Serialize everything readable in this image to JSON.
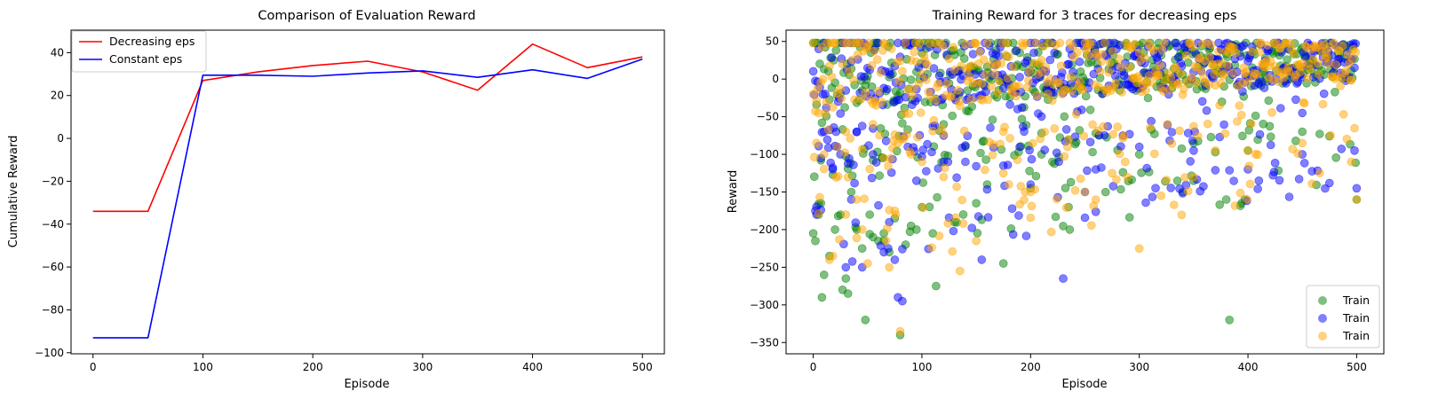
{
  "chart_data": [
    {
      "type": "line",
      "title": "Comparison of Evaluation Reward",
      "xlabel": "Episode",
      "ylabel": "Cumulative Reward",
      "xlim": [
        -20,
        520
      ],
      "ylim": [
        -100.5,
        50.5
      ],
      "xticks": [
        0,
        100,
        200,
        300,
        400,
        500
      ],
      "yticks": [
        -100,
        -80,
        -60,
        -40,
        -20,
        0,
        20,
        40
      ],
      "grid": false,
      "legend_position": "top-left",
      "x": [
        0,
        50,
        100,
        150,
        200,
        250,
        300,
        350,
        400,
        450,
        500
      ],
      "series": [
        {
          "name": "Decreasing eps",
          "color": "#ff0000",
          "values": [
            -34,
            -34,
            27,
            31,
            34,
            36,
            31,
            22.5,
            44,
            33,
            38
          ]
        },
        {
          "name": "Constant eps",
          "color": "#0000ff",
          "values": [
            -93,
            -93,
            29.5,
            29.5,
            29,
            30.5,
            31.5,
            28.5,
            32,
            28,
            37
          ]
        }
      ]
    },
    {
      "type": "scatter",
      "title": "Training Reward for 3 traces for decreasing eps",
      "xlabel": "Episode",
      "ylabel": "Reward",
      "xlim": [
        -25,
        525
      ],
      "ylim": [
        -365,
        65
      ],
      "xticks": [
        0,
        100,
        200,
        300,
        400,
        500
      ],
      "yticks": [
        -350,
        -300,
        -250,
        -200,
        -150,
        -100,
        -50,
        0,
        50
      ],
      "grid": false,
      "legend_position": "bottom-right",
      "series": [
        {
          "name": "Train",
          "color": "#008000",
          "opacity": 0.5,
          "seed": 7
        },
        {
          "name": "Train",
          "color": "#0000ff",
          "opacity": 0.5,
          "seed": 13
        },
        {
          "name": "Train",
          "color": "#ffa500",
          "opacity": 0.5,
          "seed": 29
        }
      ],
      "x_range": [
        0,
        500
      ],
      "notes_points": {
        "green": [
          [
            0,
            -205
          ],
          [
            2,
            -215
          ],
          [
            5,
            -180
          ],
          [
            7,
            -165
          ],
          [
            8,
            -290
          ],
          [
            10,
            -260
          ],
          [
            15,
            -235
          ],
          [
            20,
            -200
          ],
          [
            25,
            -180
          ],
          [
            27,
            -280
          ],
          [
            30,
            -265
          ],
          [
            32,
            -285
          ],
          [
            35,
            -150
          ],
          [
            40,
            -200
          ],
          [
            45,
            -225
          ],
          [
            48,
            -320
          ],
          [
            52,
            -180
          ],
          [
            55,
            -210
          ],
          [
            60,
            -215
          ],
          [
            65,
            -205
          ],
          [
            70,
            -230
          ],
          [
            75,
            -185
          ],
          [
            80,
            -340
          ],
          [
            85,
            -220
          ],
          [
            90,
            -195
          ],
          [
            95,
            -200
          ],
          [
            100,
            -170
          ],
          [
            110,
            -205
          ],
          [
            113,
            -275
          ],
          [
            130,
            -190
          ],
          [
            150,
            -165
          ],
          [
            160,
            -140
          ],
          [
            175,
            -245
          ],
          [
            200,
            -145
          ],
          [
            210,
            -100
          ],
          [
            220,
            -110
          ],
          [
            235,
            -170
          ],
          [
            300,
            -100
          ],
          [
            340,
            -150
          ],
          [
            350,
            -135
          ],
          [
            380,
            -160
          ],
          [
            383,
            -320
          ],
          [
            400,
            -95
          ],
          [
            450,
            -70
          ],
          [
            500,
            -160
          ]
        ],
        "blue": [
          [
            2,
            -175
          ],
          [
            3,
            -180
          ],
          [
            5,
            40
          ],
          [
            7,
            -105
          ],
          [
            10,
            -70
          ],
          [
            18,
            -120
          ],
          [
            25,
            -100
          ],
          [
            30,
            -250
          ],
          [
            35,
            -160
          ],
          [
            40,
            -70
          ],
          [
            45,
            -250
          ],
          [
            55,
            -100
          ],
          [
            65,
            -230
          ],
          [
            70,
            -190
          ],
          [
            75,
            -240
          ],
          [
            78,
            -290
          ],
          [
            82,
            -295
          ],
          [
            95,
            -135
          ],
          [
            120,
            -110
          ],
          [
            140,
            -110
          ],
          [
            155,
            -240
          ],
          [
            175,
            -115
          ],
          [
            190,
            -90
          ],
          [
            200,
            -140
          ],
          [
            230,
            -265
          ],
          [
            250,
            -150
          ],
          [
            260,
            -120
          ],
          [
            300,
            -90
          ],
          [
            350,
            -95
          ],
          [
            400,
            -120
          ],
          [
            410,
            -135
          ],
          [
            450,
            -100
          ],
          [
            498,
            -95
          ],
          [
            500,
            -145
          ]
        ],
        "orange": [
          [
            0,
            -20
          ],
          [
            3,
            -85
          ],
          [
            5,
            -45
          ],
          [
            10,
            -100
          ],
          [
            15,
            -240
          ],
          [
            18,
            -235
          ],
          [
            22,
            -90
          ],
          [
            30,
            -180
          ],
          [
            40,
            -160
          ],
          [
            45,
            -200
          ],
          [
            50,
            -245
          ],
          [
            55,
            -60
          ],
          [
            65,
            -105
          ],
          [
            70,
            -250
          ],
          [
            75,
            -175
          ],
          [
            80,
            -335
          ],
          [
            90,
            -100
          ],
          [
            100,
            -110
          ],
          [
            120,
            -130
          ],
          [
            135,
            -255
          ],
          [
            150,
            -215
          ],
          [
            175,
            -125
          ],
          [
            180,
            -140
          ],
          [
            200,
            -150
          ],
          [
            250,
            -150
          ],
          [
            260,
            -160
          ],
          [
            275,
            -125
          ],
          [
            300,
            -225
          ],
          [
            320,
            -155
          ],
          [
            350,
            -130
          ],
          [
            370,
            -95
          ],
          [
            400,
            -95
          ],
          [
            450,
            -85
          ],
          [
            495,
            -110
          ],
          [
            500,
            -160
          ]
        ]
      }
    }
  ]
}
